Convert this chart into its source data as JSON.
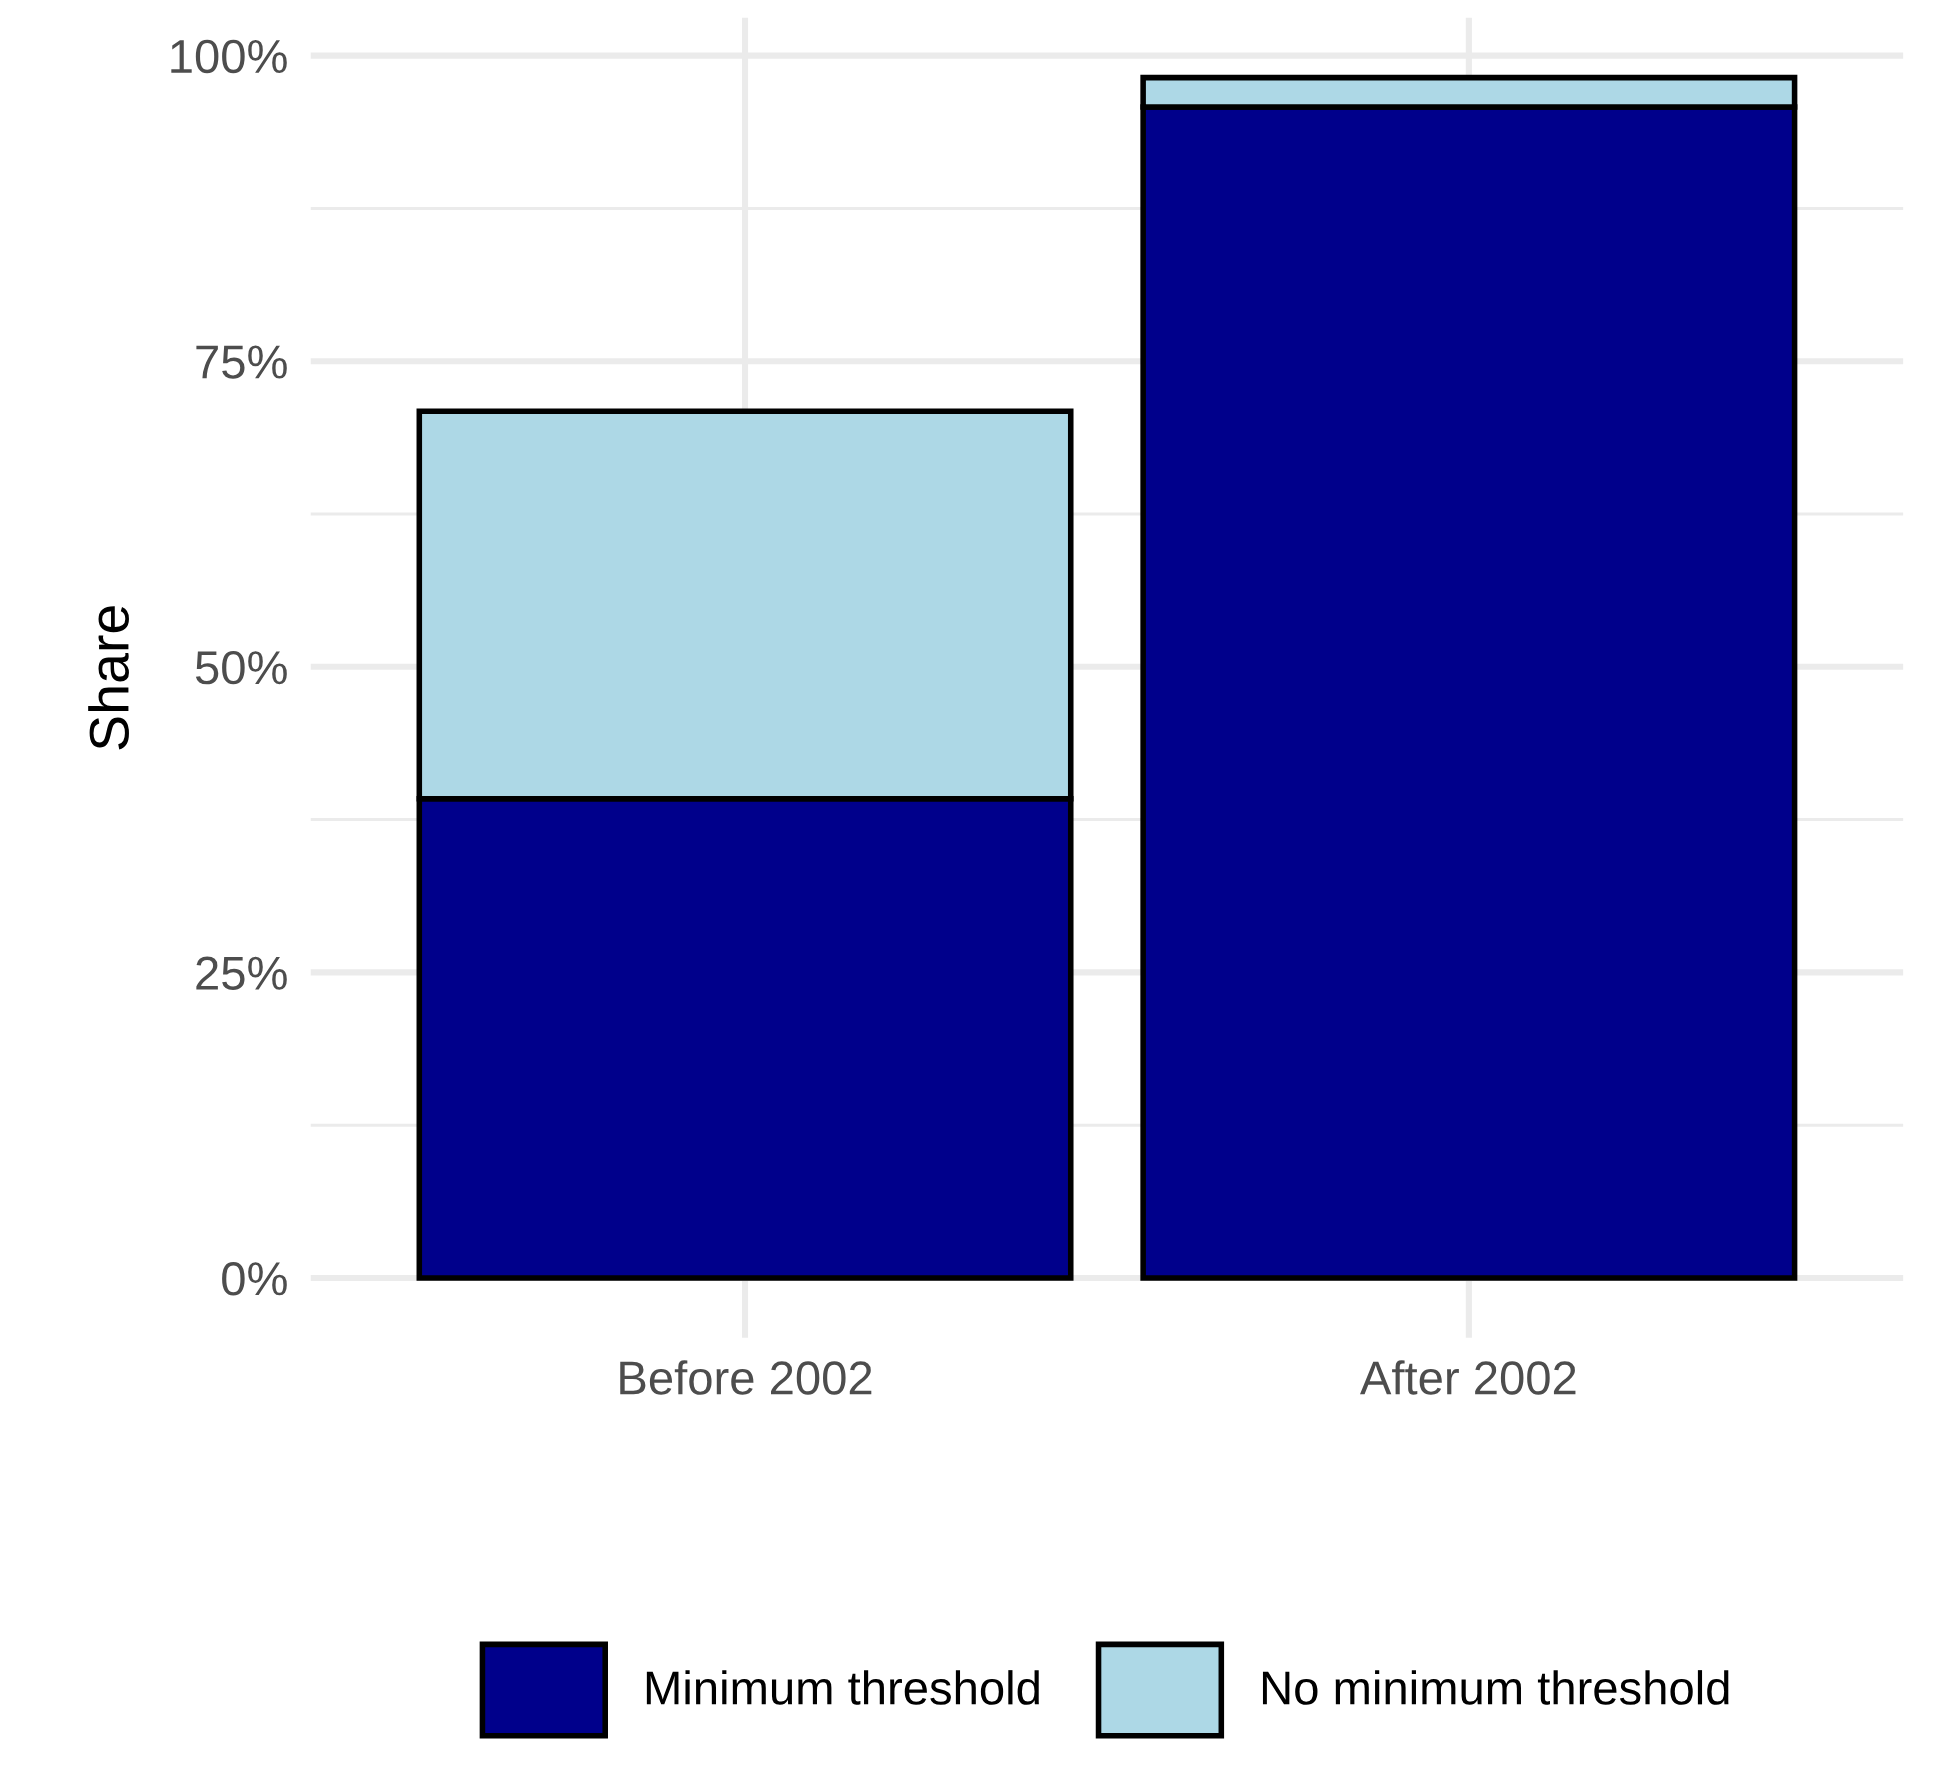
{
  "chart_data": {
    "type": "bar",
    "stacked": true,
    "ylabel": "Share",
    "categories": [
      "Before 2002",
      "After 2002"
    ],
    "series": [
      {
        "name": "Minimum threshold",
        "color": "#00008b",
        "values": [
          39.2,
          95.8
        ]
      },
      {
        "name": "No minimum threshold",
        "color": "#add8e6",
        "values": [
          31.7,
          2.4
        ]
      }
    ],
    "ylim": [
      -4.9,
      103.1
    ],
    "yticks": [
      {
        "value": 0,
        "label": "0%"
      },
      {
        "value": 12.5,
        "label": null
      },
      {
        "value": 25,
        "label": "25%"
      },
      {
        "value": 37.5,
        "label": null
      },
      {
        "value": 50,
        "label": "50%"
      },
      {
        "value": 62.5,
        "label": null
      },
      {
        "value": 75,
        "label": "75%"
      },
      {
        "value": 87.5,
        "label": null
      },
      {
        "value": 100,
        "label": "100%"
      }
    ],
    "grid": true,
    "legend": "bottom"
  }
}
